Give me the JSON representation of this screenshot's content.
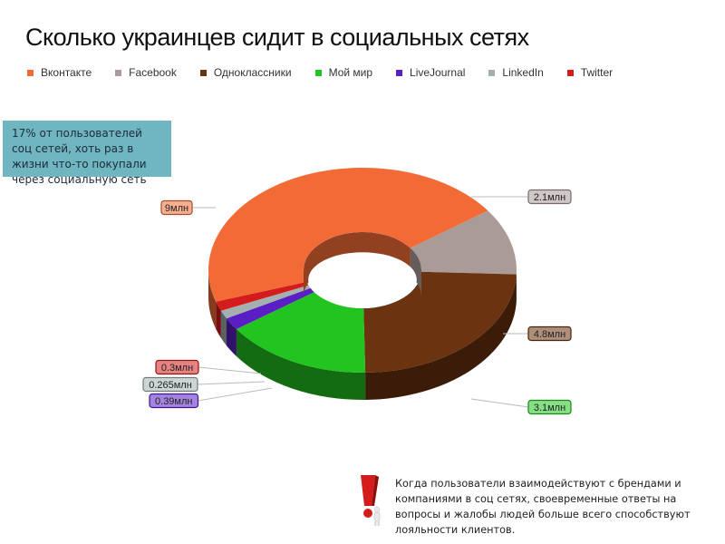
{
  "title": "Сколько украинцев сидит в социальных сетях",
  "legend": [
    {
      "label": "Вконтакте",
      "color": "#f26b36"
    },
    {
      "label": "Facebook",
      "color": "#a89b98"
    },
    {
      "label": "Одноклассники",
      "color": "#6b3310"
    },
    {
      "label": "Мой мир",
      "color": "#22c41f"
    },
    {
      "label": "LiveJournal",
      "color": "#5a1fc4"
    },
    {
      "label": "LinkedIn",
      "color": "#a4b0b0"
    },
    {
      "label": "Twitter",
      "color": "#d41c1c"
    }
  ],
  "note": "17% от пользователей соц сетей, хоть раз в жизни что-то покупали через социальную сеть",
  "bottom_note": "Когда пользователи взаимодействуют с брендами и компаниями в соц сетях, своевременные ответы на вопросы и жалобы людей больше всего способствуют лояльности клиентов.",
  "chart_data": {
    "type": "pie",
    "variant": "3d-donut",
    "title": "Сколько украинцев сидит в социальных сетях",
    "unit": "млн",
    "categories": [
      "Вконтакте",
      "Facebook",
      "Одноклассники",
      "Мой мир",
      "LiveJournal",
      "LinkedIn",
      "Twitter"
    ],
    "values": [
      9,
      2.1,
      4.8,
      3.1,
      0.39,
      0.265,
      0.3
    ],
    "value_labels": [
      "9млн",
      "2.1млн",
      "4.8млн",
      "3.1млн",
      "0.39млн",
      "0.265млн",
      "0.3млн"
    ],
    "colors": [
      "#f26b36",
      "#a89b98",
      "#6b3310",
      "#22c41f",
      "#5a1fc4",
      "#a4b0b0",
      "#d41c1c"
    ],
    "legend_position": "top-left"
  }
}
